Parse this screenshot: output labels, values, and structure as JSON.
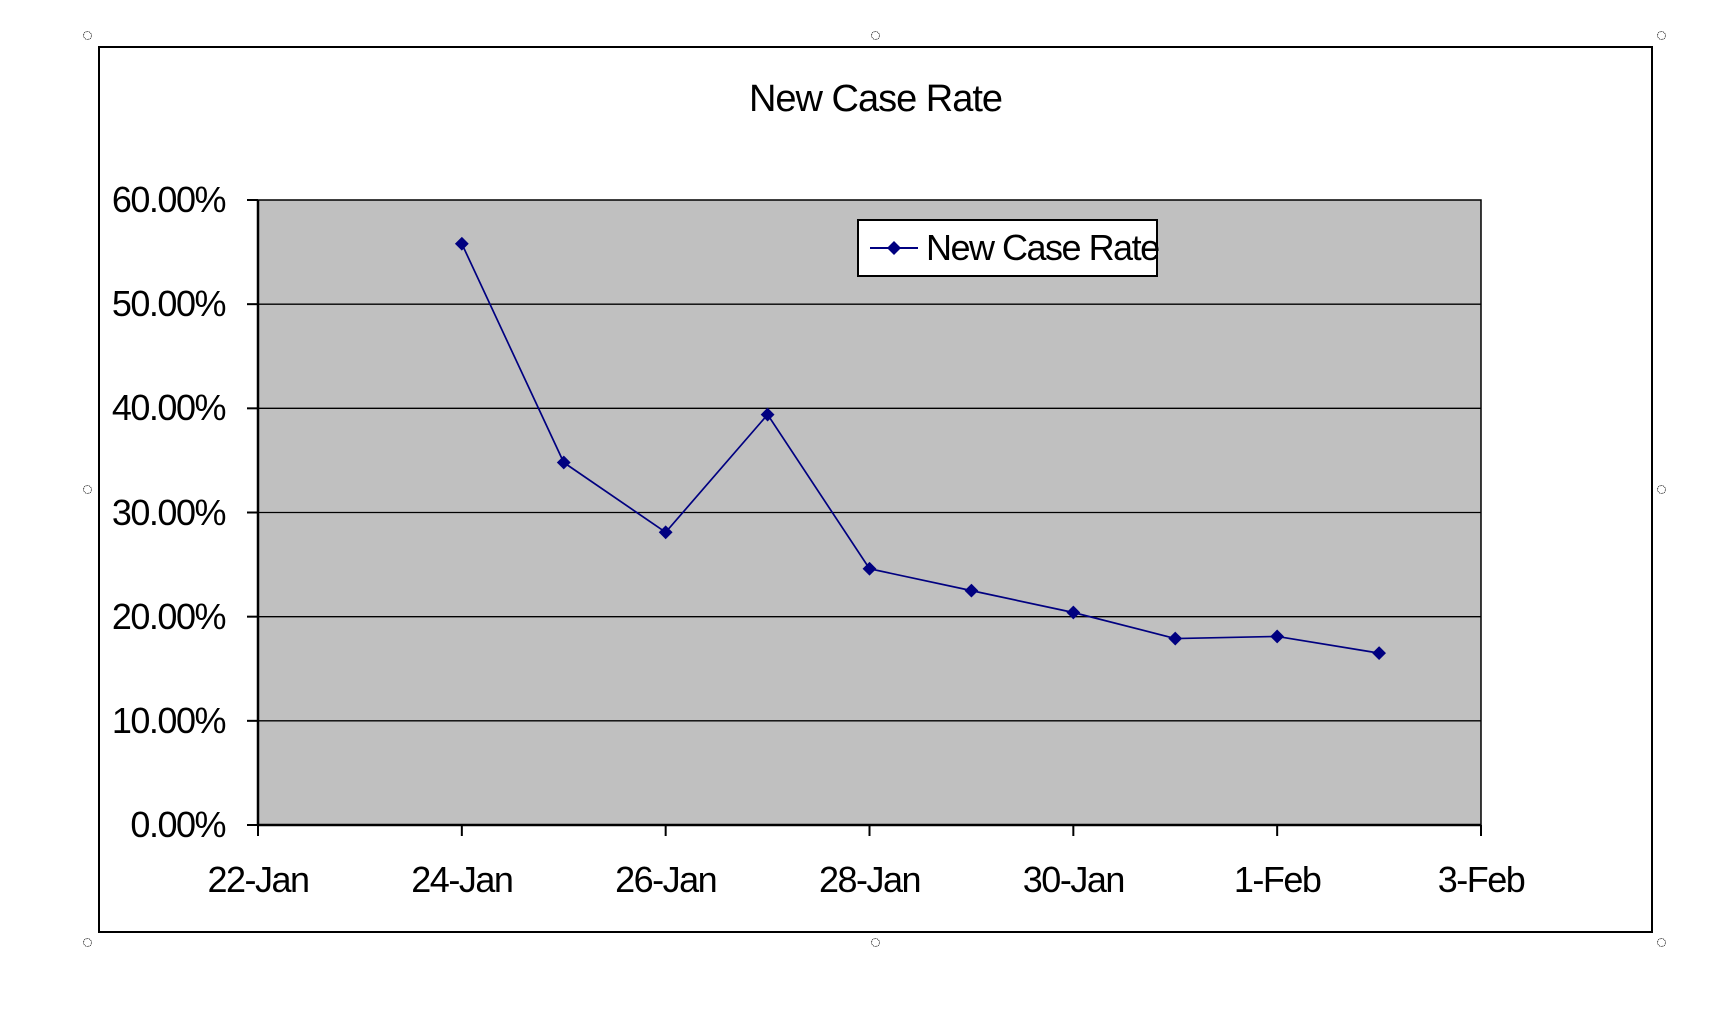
{
  "chart_data": {
    "type": "line",
    "title": "New Case Rate",
    "legend": {
      "position": "top-center-inside",
      "entries": [
        "New Case Rate"
      ]
    },
    "grid": "horizontal",
    "ylim": [
      0,
      60
    ],
    "ylabel": "",
    "xlabel": "",
    "y_ticks": [
      {
        "label": "60.00%",
        "value": 60
      },
      {
        "label": "50.00%",
        "value": 50
      },
      {
        "label": "40.00%",
        "value": 40
      },
      {
        "label": "30.00%",
        "value": 30
      },
      {
        "label": "20.00%",
        "value": 20
      },
      {
        "label": "10.00%",
        "value": 10
      },
      {
        "label": "0.00%",
        "value": 0
      }
    ],
    "x_ticks": [
      {
        "label": "22-Jan",
        "day_offset": 0
      },
      {
        "label": "24-Jan",
        "day_offset": 2
      },
      {
        "label": "26-Jan",
        "day_offset": 4
      },
      {
        "label": "28-Jan",
        "day_offset": 6
      },
      {
        "label": "30-Jan",
        "day_offset": 8
      },
      {
        "label": "1-Feb",
        "day_offset": 10
      },
      {
        "label": "3-Feb",
        "day_offset": 12
      }
    ],
    "x_axis_span_days": 12,
    "series": [
      {
        "name": "New Case Rate",
        "dates": [
          "24-Jan",
          "25-Jan",
          "26-Jan",
          "27-Jan",
          "28-Jan",
          "29-Jan",
          "30-Jan",
          "31-Jan",
          "1-Feb",
          "2-Feb"
        ],
        "x_day_offsets": [
          2,
          3,
          4,
          5,
          6,
          7,
          8,
          9,
          10,
          11
        ],
        "values_pct": [
          55.8,
          34.8,
          28.1,
          39.4,
          24.6,
          22.5,
          20.4,
          17.9,
          18.1,
          16.5
        ]
      }
    ],
    "colors": {
      "series": "#000080",
      "plot_bg": "#c0c0c0",
      "grid": "#000000",
      "axis": "#000000",
      "chart_bg": "#ffffff",
      "chart_border": "#000000"
    }
  },
  "legend_label": "New Case Rate"
}
